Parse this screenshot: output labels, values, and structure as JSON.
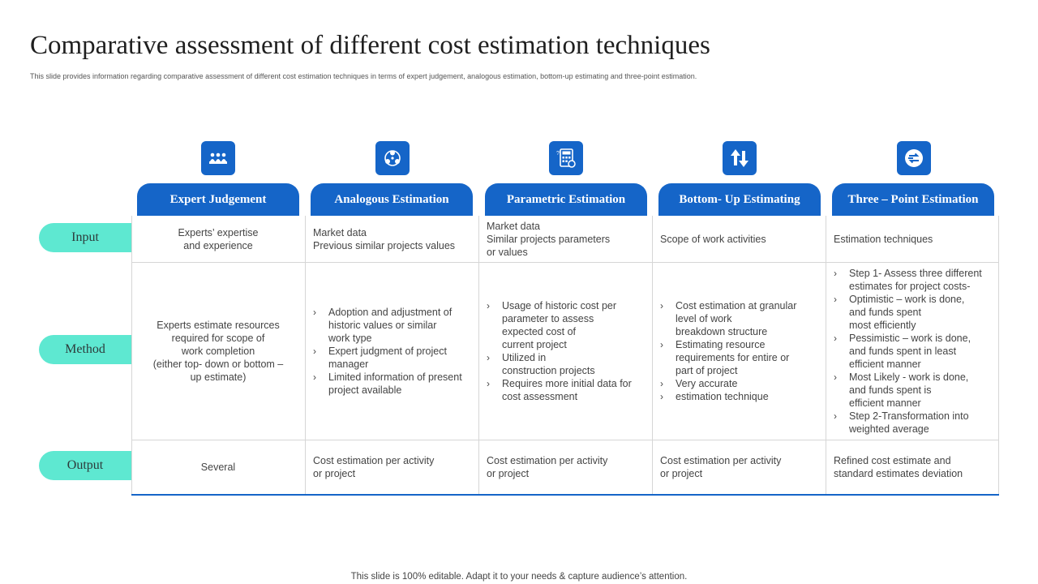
{
  "title": "Comparative assessment of different cost estimation techniques",
  "subtitle": "This slide provides information regarding comparative assessment of different cost estimation techniques in terms of expert judgement, analogous estimation, bottom-up estimating and three-point estimation.",
  "columns": [
    {
      "label": "Expert Judgement",
      "icon": "team-meeting-icon"
    },
    {
      "label": "Analogous Estimation",
      "icon": "network-cluster-icon"
    },
    {
      "label": "Parametric Estimation",
      "icon": "calculator-icon"
    },
    {
      "label": "Bottom- Up Estimating",
      "icon": "up-down-arrows-icon"
    },
    {
      "label": "Three – Point Estimation",
      "icon": "transfer-arrows-icon"
    }
  ],
  "rows": [
    {
      "label": "Input"
    },
    {
      "label": "Method"
    },
    {
      "label": "Output"
    }
  ],
  "cells": {
    "input": [
      "Experts’ expertise\nand experience",
      "Market data\nPrevious  similar projects values",
      "Market data\nSimilar projects parameters\nor values",
      "Scope of work activities",
      "Estimation techniques"
    ],
    "method": {
      "expert": "Experts estimate resources\nrequired for scope of\nwork completion\n(either top- down or bottom –\nup estimate)",
      "analogous": [
        "Adoption and adjustment of\nhistoric values  or similar\nwork type",
        "Expert judgment of project\nmanager",
        "Limited information  of present\nproject available"
      ],
      "parametric": [
        "Usage of historic cost per\nparameter to assess\nexpected cost of\ncurrent project",
        "Utilized in\nconstruction projects",
        "Requires  more initial data for\ncost assessment"
      ],
      "bottom_up": [
        "Cost estimation at granular\nlevel of work\nbreakdown  structure",
        "Estimating resource\nrequirements for entire or\npart of project",
        "Very accurate",
        "estimation technique"
      ],
      "three_point": [
        "Step 1- Assess three different\nestimates for  project costs-",
        "Optimistic – work is done,\nand funds spent\nmost efficiently",
        "Pessimistic – work is done,\nand funds spent in least\nefficient manner",
        "Most Likely - work is done,\nand funds spent is\nefficient manner",
        "Step 2-Transformation  into\nweighted average"
      ]
    },
    "output": [
      "Several",
      "Cost estimation per activity\nor project",
      "Cost estimation per activity\nor project",
      "Cost estimation per activity\nor project",
      "Refined cost estimate and\nstandard estimates deviation"
    ]
  },
  "bullet_glyph": "›",
  "footer": "This slide is 100% editable. Adapt it to your needs & capture audience’s attention.",
  "colors": {
    "accent": "#1565c8",
    "row_label": "#5ee8d1",
    "grid_line": "#d6d6d6"
  }
}
